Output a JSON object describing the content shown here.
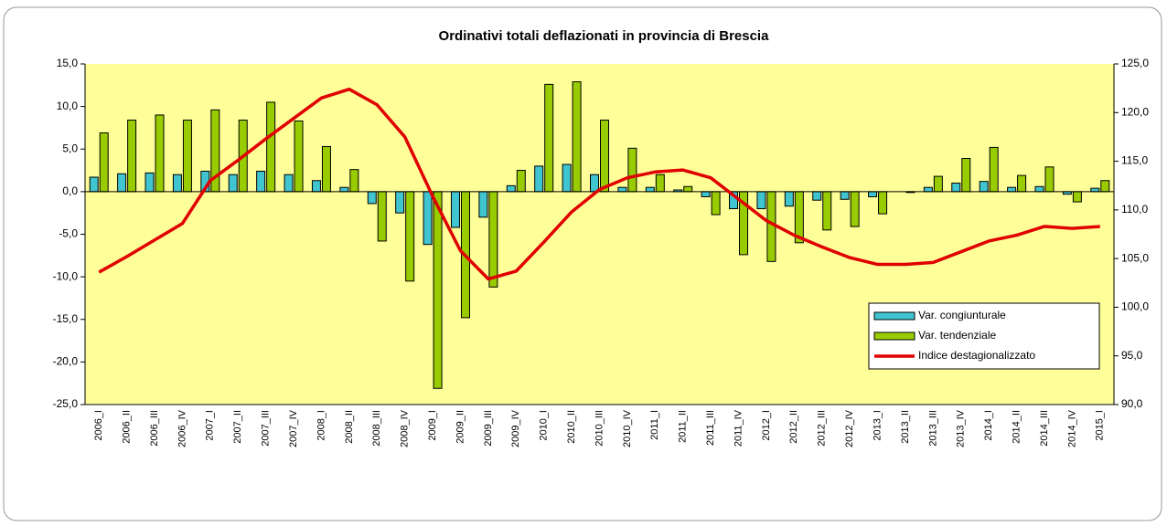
{
  "chart_data": {
    "type": "bar",
    "title": "Ordinativi totali deflazionati in provincia di Brescia",
    "categories": [
      "2006_I",
      "2006_II",
      "2006_III",
      "2006_IV",
      "2007_I",
      "2007_II",
      "2007_III",
      "2007_IV",
      "2008_I",
      "2008_II",
      "2008_III",
      "2008_IV",
      "2009_I",
      "2009_II",
      "2009_III",
      "2009_IV",
      "2010_I",
      "2010_II",
      "2010_III",
      "2010_IV",
      "2011_I",
      "2011_II",
      "2011_III",
      "2011_IV",
      "2012_I",
      "2012_II",
      "2012_III",
      "2012_IV",
      "2013_I",
      "2013_II",
      "2013_III",
      "2013_IV",
      "2014_I",
      "2014_II",
      "2014_III",
      "2014_IV",
      "2015_I"
    ],
    "series": [
      {
        "name": "Var. congiunturale",
        "color": "#40c4cf",
        "type": "bar",
        "values": [
          1.7,
          2.1,
          2.2,
          2.0,
          2.4,
          2.0,
          2.4,
          2.0,
          1.3,
          0.5,
          -1.4,
          -2.5,
          -6.2,
          -4.2,
          -3.0,
          0.7,
          3.0,
          3.2,
          2.0,
          0.5,
          0.5,
          0.2,
          -0.6,
          -2.0,
          -2.0,
          -1.7,
          -1.0,
          -0.9,
          -0.6,
          0.0,
          0.5,
          1.0,
          1.2,
          0.5,
          0.6,
          -0.3,
          0.4
        ]
      },
      {
        "name": "Var. tendenziale",
        "color": "#99cc00",
        "type": "bar",
        "values": [
          6.9,
          8.4,
          9.0,
          8.4,
          9.6,
          8.4,
          10.5,
          8.3,
          5.3,
          2.6,
          -5.8,
          -10.5,
          -23.1,
          -14.8,
          -11.2,
          2.5,
          12.6,
          12.9,
          8.4,
          5.1,
          2.0,
          0.6,
          -2.7,
          -7.4,
          -8.2,
          -6.0,
          -4.5,
          -4.1,
          -2.6,
          -0.1,
          1.8,
          3.9,
          5.2,
          1.9,
          2.9,
          -1.2,
          1.3
        ]
      },
      {
        "name": "Indice destagionalizzato",
        "color": "#e00000",
        "type": "line",
        "axis": "y2",
        "values": [
          103.6,
          105.2,
          106.9,
          108.6,
          113.0,
          115.1,
          117.3,
          119.4,
          121.5,
          122.4,
          120.8,
          117.5,
          111.4,
          105.8,
          102.9,
          103.7,
          106.7,
          109.8,
          112.1,
          113.3,
          113.9,
          114.1,
          113.3,
          111.1,
          108.9,
          107.4,
          106.2,
          105.1,
          104.4,
          104.4,
          104.6,
          105.7,
          106.8,
          107.4,
          108.3,
          108.1,
          108.3
        ]
      }
    ],
    "ylim": [
      -25,
      15
    ],
    "yticks": [
      {
        "value": -25,
        "label": "-25,0"
      },
      {
        "value": -20,
        "label": "-20,0"
      },
      {
        "value": -15,
        "label": "-15,0"
      },
      {
        "value": -10,
        "label": "-10,0"
      },
      {
        "value": -5,
        "label": "-5,0"
      },
      {
        "value": 0,
        "label": "0,0"
      },
      {
        "value": 5,
        "label": "5,0"
      },
      {
        "value": 10,
        "label": "10,0"
      },
      {
        "value": 15,
        "label": "15,0"
      }
    ],
    "y2lim": [
      90,
      125
    ],
    "y2ticks": [
      {
        "value": 90,
        "label": "90,0"
      },
      {
        "value": 95,
        "label": "95,0"
      },
      {
        "value": 100,
        "label": "100,0"
      },
      {
        "value": 105,
        "label": "105,0"
      },
      {
        "value": 110,
        "label": "110,0"
      },
      {
        "value": 115,
        "label": "115,0"
      },
      {
        "value": 120,
        "label": "120,0"
      },
      {
        "value": 125,
        "label": "125,0"
      }
    ],
    "plot_background": "#ffff99"
  }
}
